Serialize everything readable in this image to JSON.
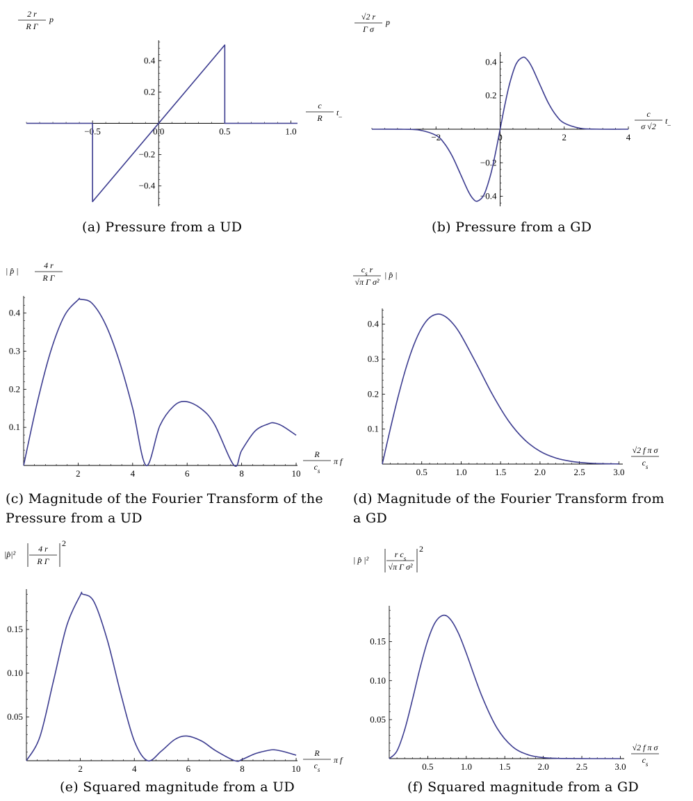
{
  "chart_data": [
    {
      "id": "a",
      "type": "line",
      "caption": "(a) Pressure from a UD",
      "ylabel": {
        "num": "2 r",
        "den": "R Γ",
        "suffix": "p"
      },
      "xlabel": {
        "num": "c",
        "sub": "s",
        "den": "R",
        "suffix": "t",
        "suffix_sub": "–"
      },
      "xlim": [
        -1.0,
        1.05
      ],
      "ylim": [
        -0.53,
        0.53
      ],
      "xticks": [
        {
          "v": -0.5,
          "t": "−0.5"
        },
        {
          "v": 0.0,
          "t": "0.0"
        },
        {
          "v": 0.5,
          "t": "0.5"
        },
        {
          "v": 1.0,
          "t": "1.0"
        }
      ],
      "yticks": [
        {
          "v": -0.4,
          "t": "−0.4"
        },
        {
          "v": -0.2,
          "t": "−0.2"
        },
        {
          "v": 0.2,
          "t": "0.2"
        },
        {
          "v": 0.4,
          "t": "0.4"
        }
      ],
      "series": [
        {
          "color": "#3b3b8f",
          "points": [
            [
              -1.0,
              0
            ],
            [
              -0.5,
              0
            ],
            [
              -0.5,
              -0.5
            ],
            [
              0.5,
              0.5
            ],
            [
              0.5,
              0
            ],
            [
              1.05,
              0
            ]
          ]
        }
      ]
    },
    {
      "id": "b",
      "type": "line",
      "caption": "(b) Pressure from a GD",
      "ylabel": {
        "num": "√2 r",
        "den": "Γ σ",
        "suffix": "p"
      },
      "xlabel": {
        "num": "c",
        "sub": "s",
        "den": "σ √2",
        "suffix": "t",
        "suffix_sub": "–"
      },
      "xlim": [
        -4.0,
        4.0
      ],
      "ylim": [
        -0.46,
        0.46
      ],
      "xticks": [
        {
          "v": -2,
          "t": "−2"
        },
        {
          "v": 0,
          "t": "0"
        },
        {
          "v": 2,
          "t": "2"
        },
        {
          "v": 4,
          "t": "4"
        }
      ],
      "yticks": [
        {
          "v": -0.4,
          "t": "−0.4"
        },
        {
          "v": -0.2,
          "t": "−0.2"
        },
        {
          "v": 0.2,
          "t": "0.2"
        },
        {
          "v": 0.4,
          "t": "0.4"
        }
      ],
      "series": [
        {
          "color": "#3b3b8f",
          "points": [
            [
              -4.0,
              0.0
            ],
            [
              -3.0,
              -0.0005
            ],
            [
              -2.5,
              -0.0057
            ],
            [
              -2.0,
              -0.0366
            ],
            [
              -1.75,
              -0.0818
            ],
            [
              -1.5,
              -0.1581
            ],
            [
              -1.25,
              -0.2618
            ],
            [
              -1.0,
              -0.3679
            ],
            [
              -0.85,
              -0.4137
            ],
            [
              -0.7071,
              -0.4289
            ],
            [
              -0.5,
              -0.3894
            ],
            [
              -0.3,
              -0.2741
            ],
            [
              -0.15,
              -0.1467
            ],
            [
              0.0,
              0.0
            ],
            [
              0.15,
              0.1467
            ],
            [
              0.3,
              0.2741
            ],
            [
              0.5,
              0.3894
            ],
            [
              0.7071,
              0.4289
            ],
            [
              0.85,
              0.4137
            ],
            [
              1.0,
              0.3679
            ],
            [
              1.25,
              0.2618
            ],
            [
              1.5,
              0.1581
            ],
            [
              1.75,
              0.0818
            ],
            [
              2.0,
              0.0366
            ],
            [
              2.5,
              0.0057
            ],
            [
              3.0,
              0.0005
            ],
            [
              4.0,
              0.0
            ]
          ]
        }
      ]
    },
    {
      "id": "c",
      "type": "line",
      "caption_lines": [
        "(c) Magnitude of the Fourier Transform of the",
        "Pressure from a UD"
      ],
      "ylabel": {
        "prefix": "| p̂ |",
        "num": "4 r",
        "den": "R Γ"
      },
      "xlabel": {
        "num": "R",
        "den": "c",
        "den_sub": "s",
        "suffix": "π f"
      },
      "xlim": [
        0,
        10.05
      ],
      "ylim": [
        0,
        0.445
      ],
      "xticks": [
        {
          "v": 2,
          "t": "2"
        },
        {
          "v": 4,
          "t": "4"
        },
        {
          "v": 6,
          "t": "6"
        },
        {
          "v": 8,
          "t": "8"
        },
        {
          "v": 10,
          "t": "10"
        }
      ],
      "yticks": [
        {
          "v": 0.1,
          "t": "0.1"
        },
        {
          "v": 0.2,
          "t": "0.2"
        },
        {
          "v": 0.3,
          "t": "0.3"
        },
        {
          "v": 0.4,
          "t": "0.4"
        }
      ],
      "series": [
        {
          "color": "#3b3b8f",
          "points": [
            [
              0.0,
              0.0
            ],
            [
              0.5,
              0.1651
            ],
            [
              1.0,
              0.3012
            ],
            [
              1.5,
              0.3933
            ],
            [
              2.0,
              0.4349
            ],
            [
              2.0816,
              0.4362
            ],
            [
              2.5,
              0.4264
            ],
            [
              3.0,
              0.3712
            ],
            [
              3.5,
              0.2764
            ],
            [
              4.0,
              0.1503
            ],
            [
              4.4934,
              0.0
            ],
            [
              5.0,
              0.1045
            ],
            [
              5.5,
              0.1554
            ],
            [
              5.94,
              0.1679
            ],
            [
              6.5,
              0.1498
            ],
            [
              7.0,
              0.1084
            ],
            [
              7.7253,
              0.0
            ],
            [
              8.0,
              0.0392
            ],
            [
              8.5,
              0.0908
            ],
            [
              9.0,
              0.1096
            ],
            [
              9.205,
              0.1115
            ],
            [
              9.5,
              0.1034
            ],
            [
              10.0,
              0.0794
            ]
          ]
        }
      ]
    },
    {
      "id": "d",
      "type": "line",
      "caption_lines": [
        "(d) Magnitude of the Fourier Transform from",
        "a GD"
      ],
      "ylabel": {
        "num": "c",
        "num_sub": "s",
        "num_tail": " r",
        "den": "√π Γ σ²",
        "suffix": "| p̂ |"
      },
      "xlabel": {
        "num": "√2 f π σ",
        "den": "c",
        "den_sub": "s"
      },
      "xlim": [
        0,
        3.05
      ],
      "ylim": [
        0,
        0.445
      ],
      "xticks": [
        {
          "v": 0.5,
          "t": "0.5"
        },
        {
          "v": 1.0,
          "t": "1.0"
        },
        {
          "v": 1.5,
          "t": "1.5"
        },
        {
          "v": 2.0,
          "t": "2.0"
        },
        {
          "v": 2.5,
          "t": "2.5"
        },
        {
          "v": 3.0,
          "t": "3.0"
        }
      ],
      "yticks": [
        {
          "v": 0.1,
          "t": "0.1"
        },
        {
          "v": 0.2,
          "t": "0.2"
        },
        {
          "v": 0.3,
          "t": "0.3"
        },
        {
          "v": 0.4,
          "t": "0.4"
        }
      ],
      "series": [
        {
          "color": "#3b3b8f",
          "points": [
            [
              0.0,
              0.0
            ],
            [
              0.1,
              0.099
            ],
            [
              0.2,
              0.1922
            ],
            [
              0.3,
              0.2743
            ],
            [
              0.4,
              0.3409
            ],
            [
              0.5,
              0.3894
            ],
            [
              0.6,
              0.4186
            ],
            [
              0.7071,
              0.4289
            ],
            [
              0.8,
              0.4218
            ],
            [
              0.9,
              0.4005
            ],
            [
              1.0,
              0.3679
            ],
            [
              1.2,
              0.2843
            ],
            [
              1.4,
              0.1976
            ],
            [
              1.6,
              0.1237
            ],
            [
              1.8,
              0.0705
            ],
            [
              2.0,
              0.0366
            ],
            [
              2.2,
              0.0174
            ],
            [
              2.4,
              0.0076
            ],
            [
              2.6,
              0.003
            ],
            [
              2.8,
              0.0011
            ],
            [
              3.0,
              0.0004
            ]
          ]
        }
      ]
    },
    {
      "id": "e",
      "type": "line",
      "caption": "(e) Squared magnitude from a UD",
      "ylabel": {
        "prefix": "|p̂|²",
        "num": "4 r",
        "den": "R Γ",
        "bars": true,
        "power": "2"
      },
      "xlabel": {
        "num": "R",
        "den": "c",
        "den_sub": "s",
        "suffix": "π f"
      },
      "xlim": [
        0,
        10.05
      ],
      "ylim": [
        0,
        0.196
      ],
      "xticks": [
        {
          "v": 2,
          "t": "2"
        },
        {
          "v": 4,
          "t": "4"
        },
        {
          "v": 6,
          "t": "6"
        },
        {
          "v": 8,
          "t": "8"
        },
        {
          "v": 10,
          "t": "10"
        }
      ],
      "yticks": [
        {
          "v": 0.05,
          "t": "0.05"
        },
        {
          "v": 0.1,
          "t": "0.10"
        },
        {
          "v": 0.15,
          "t": "0.15"
        }
      ],
      "series": [
        {
          "color": "#3b3b8f",
          "points": [
            [
              0.0,
              0.0
            ],
            [
              0.5,
              0.0273
            ],
            [
              1.0,
              0.0907
            ],
            [
              1.5,
              0.1547
            ],
            [
              2.0,
              0.1891
            ],
            [
              2.0816,
              0.1903
            ],
            [
              2.5,
              0.1818
            ],
            [
              3.0,
              0.1378
            ],
            [
              3.5,
              0.0764
            ],
            [
              4.0,
              0.0226
            ],
            [
              4.4934,
              0.0
            ],
            [
              5.0,
              0.0109
            ],
            [
              5.5,
              0.0242
            ],
            [
              5.94,
              0.0282
            ],
            [
              6.5,
              0.0224
            ],
            [
              7.0,
              0.0118
            ],
            [
              7.7253,
              0.0
            ],
            [
              8.0,
              0.0015
            ],
            [
              8.5,
              0.0082
            ],
            [
              9.0,
              0.012
            ],
            [
              9.205,
              0.0124
            ],
            [
              9.5,
              0.0107
            ],
            [
              10.0,
              0.0063
            ]
          ]
        }
      ]
    },
    {
      "id": "f",
      "type": "line",
      "caption": "(f) Squared magnitude from a GD",
      "ylabel": {
        "prefix": "| p̂ |²",
        "num": "r c",
        "num_sub": "s",
        "den": "√π Γ σ²",
        "bars": true,
        "power": "2"
      },
      "xlabel": {
        "num": "√2 f π σ",
        "den": "c",
        "den_sub": "s"
      },
      "xlim": [
        0,
        3.05
      ],
      "ylim": [
        0,
        0.196
      ],
      "xticks": [
        {
          "v": 0.5,
          "t": "0.5"
        },
        {
          "v": 1.0,
          "t": "1.0"
        },
        {
          "v": 1.5,
          "t": "1.5"
        },
        {
          "v": 2.0,
          "t": "2.0"
        },
        {
          "v": 2.5,
          "t": "2.5"
        },
        {
          "v": 3.0,
          "t": "3.0"
        }
      ],
      "yticks": [
        {
          "v": 0.05,
          "t": "0.05"
        },
        {
          "v": 0.1,
          "t": "0.10"
        },
        {
          "v": 0.15,
          "t": "0.15"
        }
      ],
      "series": [
        {
          "color": "#3b3b8f",
          "points": [
            [
              0.0,
              0.0
            ],
            [
              0.1,
              0.0098
            ],
            [
              0.2,
              0.0369
            ],
            [
              0.3,
              0.0752
            ],
            [
              0.4,
              0.1162
            ],
            [
              0.5,
              0.1516
            ],
            [
              0.6,
              0.1752
            ],
            [
              0.7071,
              0.1839
            ],
            [
              0.8,
              0.1779
            ],
            [
              0.9,
              0.1604
            ],
            [
              1.0,
              0.1353
            ],
            [
              1.2,
              0.0808
            ],
            [
              1.4,
              0.039
            ],
            [
              1.6,
              0.0153
            ],
            [
              1.8,
              0.005
            ],
            [
              2.0,
              0.0013
            ],
            [
              2.2,
              0.0003
            ],
            [
              2.4,
              0.0001
            ],
            [
              2.6,
              0.0
            ],
            [
              3.0,
              0.0
            ]
          ]
        }
      ]
    }
  ]
}
